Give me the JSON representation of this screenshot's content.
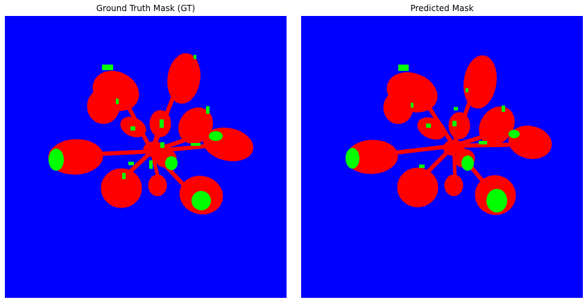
{
  "panels": [
    {
      "title": "Ground Truth Mask (GT)"
    },
    {
      "title": "Predicted Mask"
    }
  ],
  "colors": {
    "background_class": "#0000ff",
    "class_red": "#ff0000",
    "class_green": "#00ff00",
    "figure_background": "#ffffff"
  }
}
